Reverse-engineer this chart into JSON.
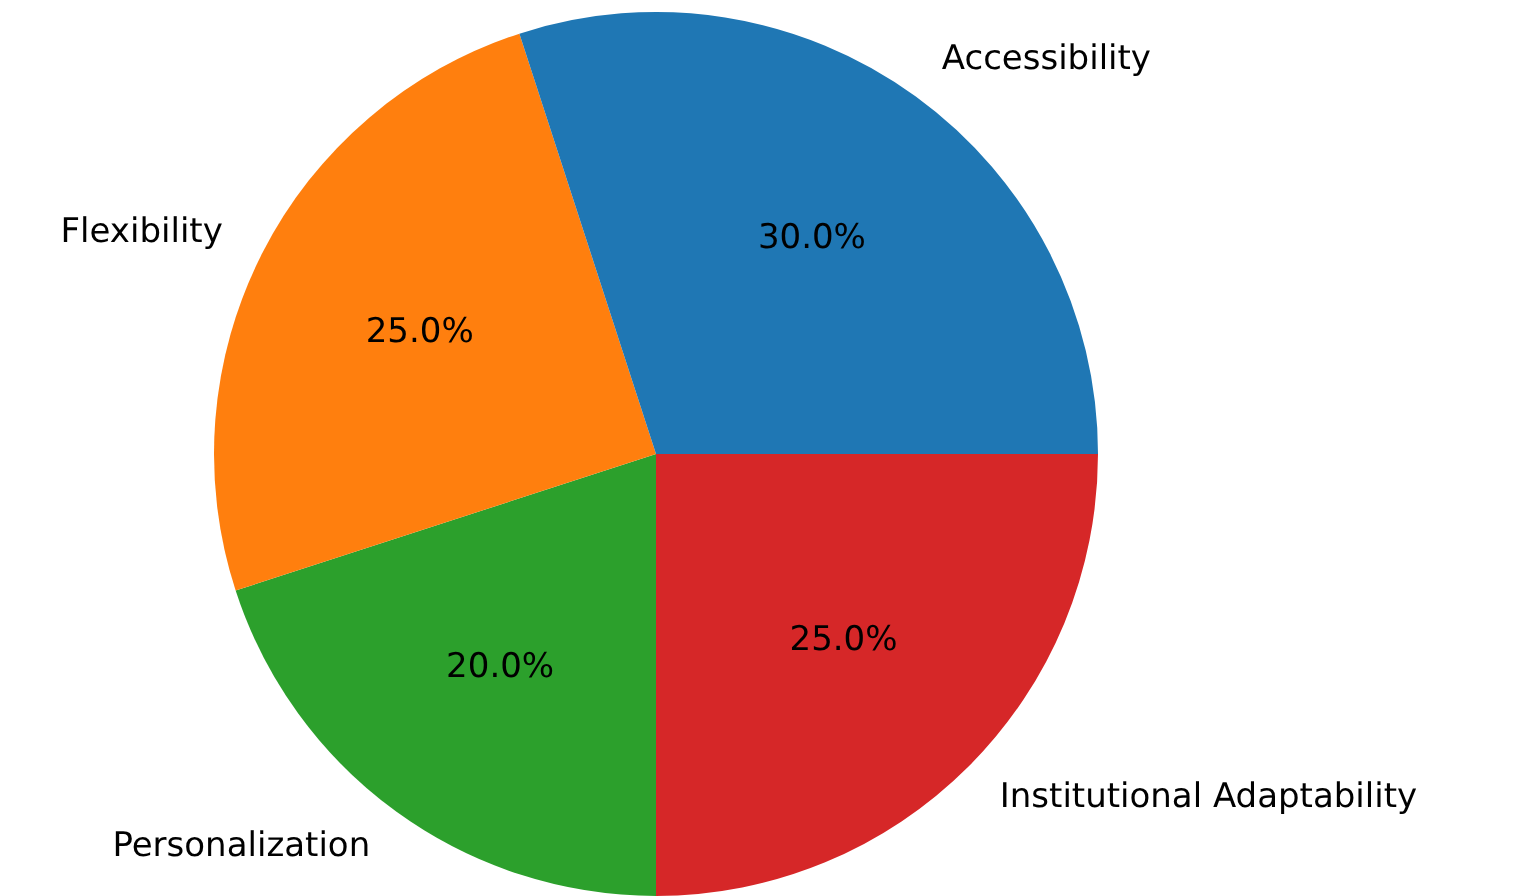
{
  "chart_data": {
    "type": "pie",
    "categories": [
      "Accessibility",
      "Flexibility",
      "Personalization",
      "Institutional Adaptability"
    ],
    "values": [
      30,
      25,
      20,
      25
    ],
    "colors": [
      "#1f77b4",
      "#ff7f0e",
      "#2ca02c",
      "#d62728"
    ],
    "value_labels": [
      "30.0%",
      "25.0%",
      "20.0%",
      "25.0%"
    ],
    "legend": false
  }
}
